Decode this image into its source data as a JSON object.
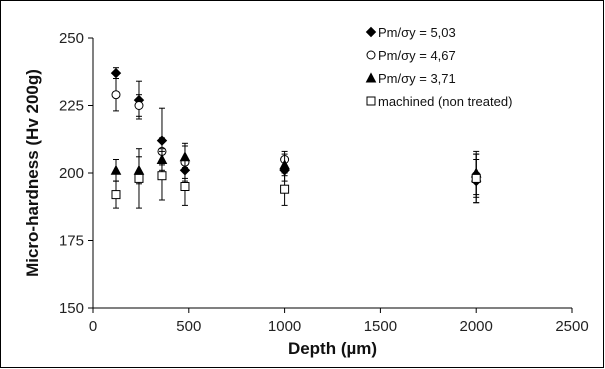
{
  "chart_data": {
    "type": "scatter",
    "xlabel": "Depth (µm)",
    "ylabel": "Micro-hardness (Hv 200g)",
    "xlim": [
      0,
      2500
    ],
    "ylim": [
      150,
      250
    ],
    "xticks": [
      0,
      500,
      1000,
      1500,
      2000,
      2500
    ],
    "yticks": [
      150,
      175,
      200,
      225,
      250
    ],
    "xtick_labels": [
      "0",
      "500",
      "1000",
      "1500",
      "2000",
      "2500"
    ],
    "ytick_labels": [
      "150",
      "175",
      "200",
      "225",
      "250"
    ],
    "grid": false,
    "legend_position": "top-right",
    "series": [
      {
        "name": "Pm/σy = 5,03",
        "marker": "diamond-filled",
        "points": [
          {
            "x": 120,
            "y": 237,
            "err": 2
          },
          {
            "x": 240,
            "y": 227,
            "err": 7
          },
          {
            "x": 360,
            "y": 212,
            "err": 12
          },
          {
            "x": 480,
            "y": 201,
            "err": 4
          },
          {
            "x": 1000,
            "y": 201,
            "err": 4
          },
          {
            "x": 2000,
            "y": 197,
            "err": 8
          }
        ]
      },
      {
        "name": "Pm/σy = 4,67",
        "marker": "circle-open",
        "points": [
          {
            "x": 120,
            "y": 229,
            "err": 6
          },
          {
            "x": 240,
            "y": 225,
            "err": 4
          },
          {
            "x": 360,
            "y": 208,
            "err": 5
          },
          {
            "x": 480,
            "y": 204,
            "err": 6
          },
          {
            "x": 1000,
            "y": 205,
            "err": 3
          },
          {
            "x": 2000,
            "y": 199,
            "err": 8
          }
        ]
      },
      {
        "name": "Pm/σy = 3,71",
        "marker": "triangle-filled",
        "points": [
          {
            "x": 120,
            "y": 201,
            "err": 4
          },
          {
            "x": 240,
            "y": 201,
            "err": 5
          },
          {
            "x": 360,
            "y": 205,
            "err": 4
          },
          {
            "x": 480,
            "y": 206,
            "err": 5
          },
          {
            "x": 1000,
            "y": 203,
            "err": 4
          },
          {
            "x": 2000,
            "y": 200,
            "err": 8
          }
        ]
      },
      {
        "name": "machined (non treated)",
        "marker": "square-open",
        "points": [
          {
            "x": 120,
            "y": 192,
            "err": 5
          },
          {
            "x": 240,
            "y": 198,
            "err": 11
          },
          {
            "x": 360,
            "y": 199,
            "err": 9
          },
          {
            "x": 480,
            "y": 195,
            "err": 7
          },
          {
            "x": 1000,
            "y": 194,
            "err": 6
          },
          {
            "x": 2000,
            "y": 198,
            "err": 9
          }
        ]
      }
    ]
  }
}
